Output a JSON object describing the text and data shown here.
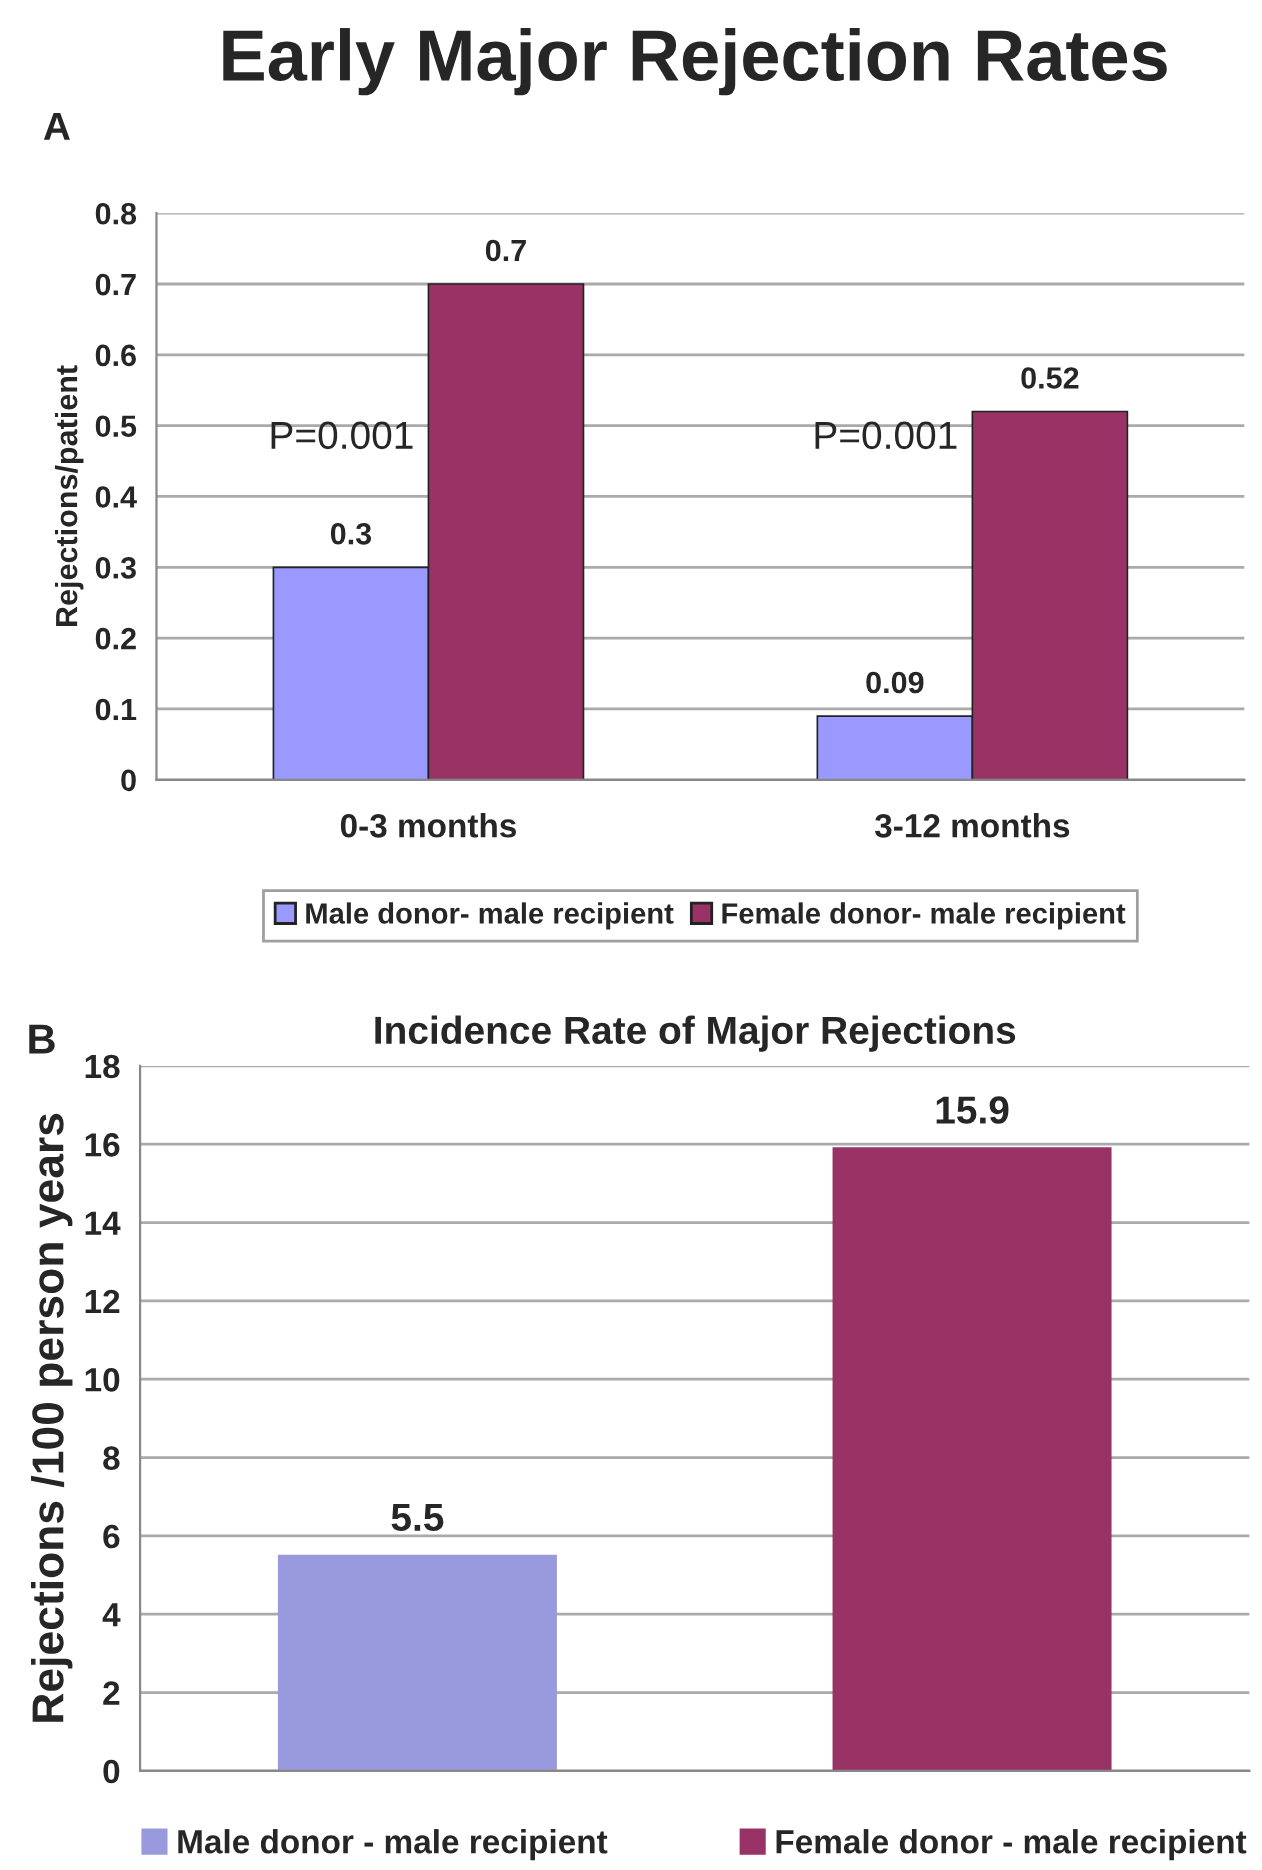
{
  "chart_data": [
    {
      "type": "bar",
      "title": "Early Major Rejection Rates",
      "ylabel": "Rejections/patient",
      "categories": [
        "0-3 months",
        "3-12 months"
      ],
      "series": [
        {
          "name": "Male donor- male recipient",
          "color": "#9999ff",
          "values": [
            0.3,
            0.09
          ]
        },
        {
          "name": "Female donor- male recipient",
          "color": "#993366",
          "values": [
            0.7,
            0.52
          ]
        }
      ],
      "ylim": [
        0,
        0.8
      ],
      "yticks": [
        {
          "value": 0,
          "label": "0"
        },
        0.1,
        0.2,
        0.3,
        0.4,
        0.5,
        0.6,
        0.7,
        0.8
      ],
      "data_labels": true,
      "grid": "y",
      "legend": "bottom",
      "annotations": [
        "A",
        "P=0.001",
        "P=0.001"
      ]
    },
    {
      "type": "bar",
      "title": "Incidence Rate of Major Rejections",
      "ylabel": "Rejections /100 person years",
      "categories": [
        null,
        null
      ],
      "stacked": true,
      "series": [
        {
          "name": "Male donor - male recipient",
          "color": "#9999dd",
          "values": [
            5.5,
            null
          ]
        },
        {
          "name": "Female donor - male recipient",
          "color": "#993366",
          "values": [
            null,
            15.9
          ]
        }
      ],
      "ylim": [
        0,
        18
      ],
      "yticks": [
        0,
        2,
        4,
        6,
        8,
        10,
        12,
        14,
        16,
        18
      ],
      "data_labels": true,
      "grid": "y",
      "legend": "bottom",
      "annotations": [
        "B"
      ]
    }
  ]
}
